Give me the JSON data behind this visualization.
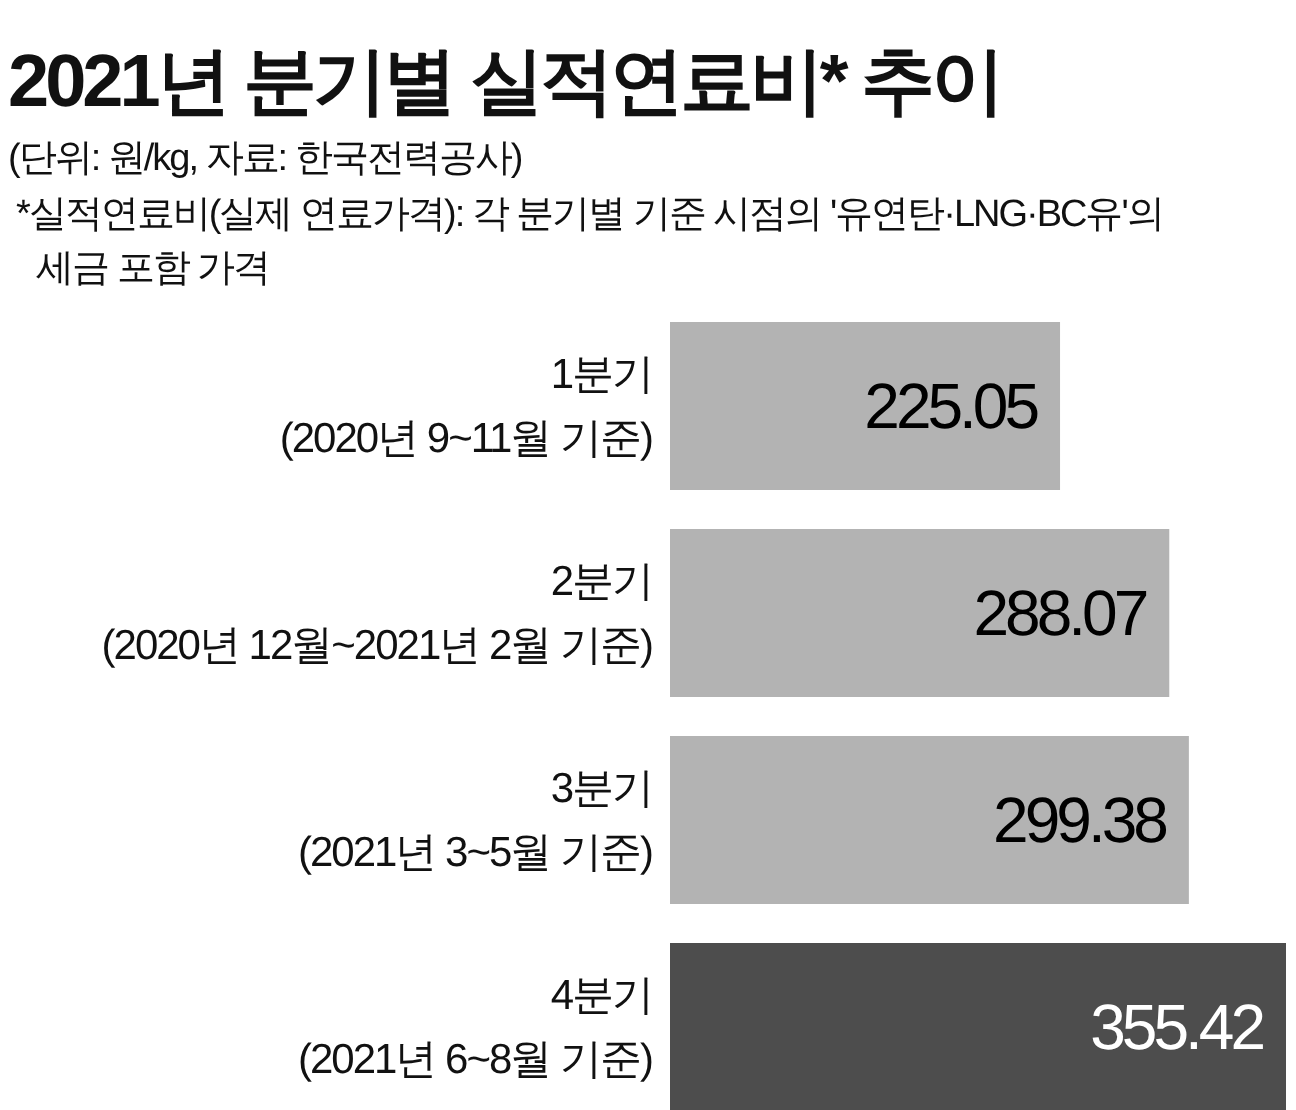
{
  "chart_data": {
    "type": "bar",
    "orientation": "horizontal",
    "title": "2021년 분기별 실적연료비* 추이",
    "subtitle": "(단위: 원/kg, 자료: 한국전력공사)",
    "annotations": [
      "*실적연료비(실제 연료가격): 각 분기별 기준 시점의 '유연탄·LNG·BC유'의 세금 포함 가격"
    ],
    "categories": [
      "1분기\n(2020년 9~11월 기준)",
      "2분기\n(2020년 12월~2021년 2월 기준)",
      "3분기\n(2021년 3~5월 기준)",
      "4분기\n(2021년 6~8월 기준)"
    ],
    "values": [
      225.05,
      288.07,
      299.38,
      355.42
    ],
    "colors": [
      "#b3b3b3",
      "#b3b3b3",
      "#b3b3b3",
      "#4d4d4d"
    ],
    "data_labels": true
  }
}
